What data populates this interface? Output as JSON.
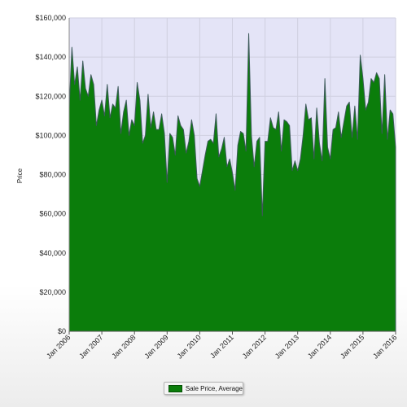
{
  "chart_data": {
    "type": "area",
    "title": "",
    "xlabel": "",
    "ylabel": "Price",
    "ylim": [
      0,
      160000
    ],
    "y_ticks": [
      "$0",
      "$20,000",
      "$40,000",
      "$60,000",
      "$80,000",
      "$100,000",
      "$120,000",
      "$140,000",
      "$160,000"
    ],
    "x_ticks": [
      "Jan 2006",
      "Jan 2007",
      "Jan 2008",
      "Jan 2009",
      "Jan 2010",
      "Jan 2011",
      "Jan 2012",
      "Jan 2013",
      "Jan 2014",
      "Jan 2015",
      "Jan 2016"
    ],
    "grid": true,
    "legend_position": "bottom-center",
    "series": [
      {
        "name": "Sale Price, Average",
        "color": "#0b7d0b",
        "x": [
          "2006-01",
          "2006-02",
          "2006-03",
          "2006-04",
          "2006-05",
          "2006-06",
          "2006-07",
          "2006-08",
          "2006-09",
          "2006-10",
          "2006-11",
          "2006-12",
          "2007-01",
          "2007-02",
          "2007-03",
          "2007-04",
          "2007-05",
          "2007-06",
          "2007-07",
          "2007-08",
          "2007-09",
          "2007-10",
          "2007-11",
          "2007-12",
          "2008-01",
          "2008-02",
          "2008-03",
          "2008-04",
          "2008-05",
          "2008-06",
          "2008-07",
          "2008-08",
          "2008-09",
          "2008-10",
          "2008-11",
          "2008-12",
          "2009-01",
          "2009-02",
          "2009-03",
          "2009-04",
          "2009-05",
          "2009-06",
          "2009-07",
          "2009-08",
          "2009-09",
          "2009-10",
          "2009-11",
          "2009-12",
          "2010-01",
          "2010-02",
          "2010-03",
          "2010-04",
          "2010-05",
          "2010-06",
          "2010-07",
          "2010-08",
          "2010-09",
          "2010-10",
          "2010-11",
          "2010-12",
          "2011-01",
          "2011-02",
          "2011-03",
          "2011-04",
          "2011-05",
          "2011-06",
          "2011-07",
          "2011-08",
          "2011-09",
          "2011-10",
          "2011-11",
          "2011-12",
          "2012-01",
          "2012-02",
          "2012-03",
          "2012-04",
          "2012-05",
          "2012-06",
          "2012-07",
          "2012-08",
          "2012-09",
          "2012-10",
          "2012-11",
          "2012-12",
          "2013-01",
          "2013-02",
          "2013-03",
          "2013-04",
          "2013-05",
          "2013-06",
          "2013-07",
          "2013-08",
          "2013-09",
          "2013-10",
          "2013-11",
          "2013-12",
          "2014-01",
          "2014-02",
          "2014-03",
          "2014-04",
          "2014-05",
          "2014-06",
          "2014-07",
          "2014-08",
          "2014-09",
          "2014-10",
          "2014-11",
          "2014-12",
          "2015-01",
          "2015-02",
          "2015-03",
          "2015-04",
          "2015-05",
          "2015-06",
          "2015-07",
          "2015-08",
          "2015-09",
          "2015-10",
          "2015-11",
          "2015-12",
          "2016-01"
        ],
        "values": [
          114000,
          145000,
          126000,
          135000,
          118000,
          138000,
          124000,
          120000,
          131000,
          126000,
          105000,
          113000,
          118000,
          110000,
          126000,
          109000,
          116000,
          114000,
          125000,
          101000,
          112000,
          118000,
          100000,
          108000,
          105000,
          127000,
          118000,
          96000,
          100000,
          121000,
          104000,
          112000,
          103000,
          103000,
          111000,
          101000,
          76000,
          101000,
          99000,
          90000,
          110000,
          105000,
          103000,
          91000,
          97000,
          108000,
          100000,
          78000,
          74000,
          82000,
          90000,
          97000,
          98000,
          96000,
          111000,
          89000,
          93000,
          99000,
          84000,
          88000,
          81000,
          72000,
          95000,
          102000,
          101000,
          92000,
          152000,
          100000,
          84000,
          97000,
          99000,
          59000,
          97000,
          97000,
          109000,
          104000,
          103000,
          112000,
          92000,
          108000,
          107000,
          105000,
          82000,
          87000,
          82000,
          88000,
          100000,
          116000,
          108000,
          109000,
          88000,
          114000,
          96000,
          87000,
          129000,
          94000,
          88000,
          103000,
          104000,
          112000,
          99000,
          107000,
          115000,
          117000,
          99000,
          115000,
          98000,
          141000,
          129000,
          113000,
          117000,
          129000,
          127000,
          132000,
          129000,
          101000,
          131000,
          98000,
          113000,
          111000,
          94000
        ]
      }
    ]
  }
}
